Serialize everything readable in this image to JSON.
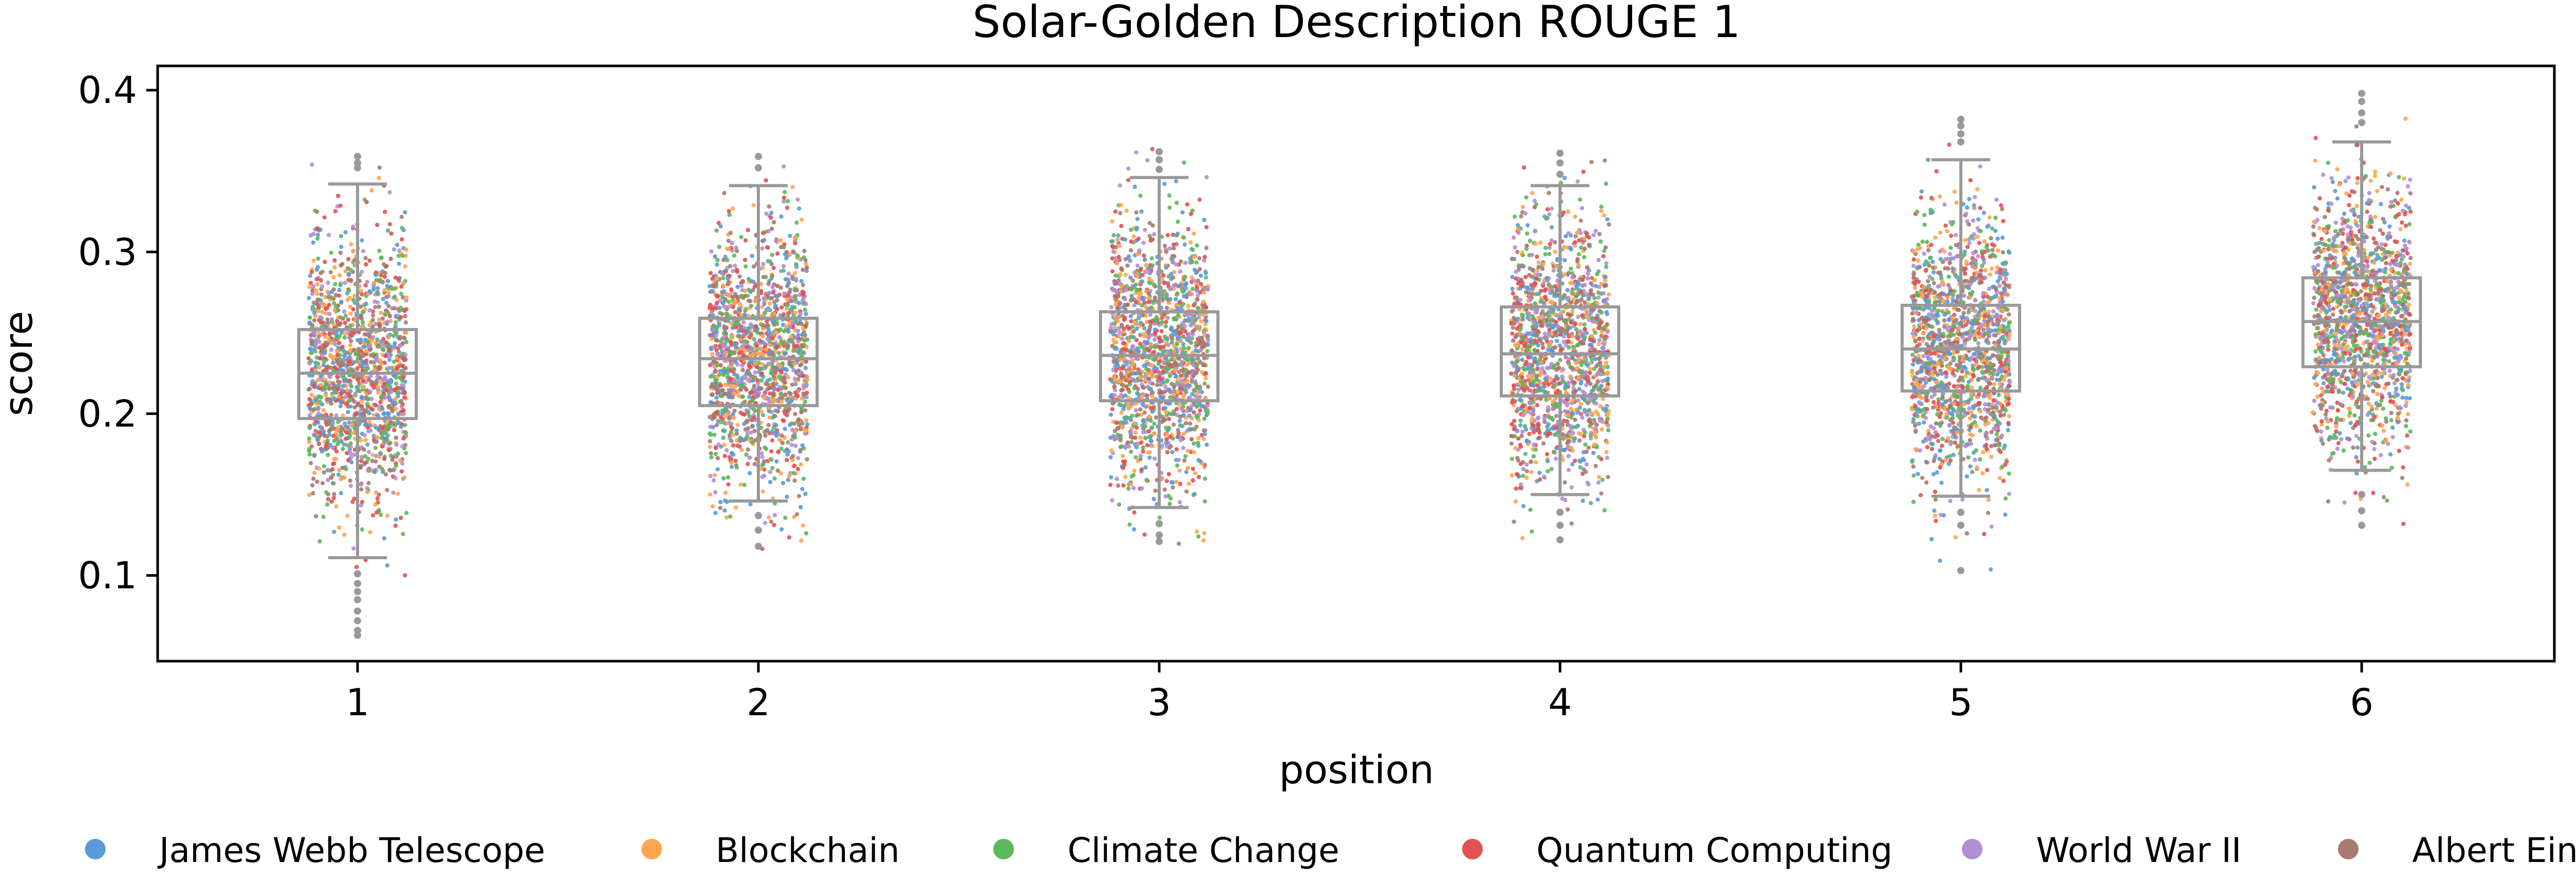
{
  "chart_data": {
    "type": "box-strip",
    "title": "Solar-Golden Description ROUGE 1",
    "xlabel": "position",
    "ylabel": "score",
    "categories": [
      "1",
      "2",
      "3",
      "4",
      "5",
      "6"
    ],
    "ylim": [
      0.047,
      0.415
    ],
    "yticks": [
      0.1,
      0.2,
      0.3,
      0.4
    ],
    "ytick_labels": [
      "0.1",
      "0.2",
      "0.3",
      "0.4"
    ],
    "grid": false,
    "legend_position": "bottom",
    "box_color": "#999999",
    "boxes": [
      {
        "category": "1",
        "whisker_low": 0.111,
        "q1": 0.197,
        "median": 0.225,
        "q3": 0.252,
        "whisker_high": 0.342,
        "outliers": [
          0.355,
          0.359,
          0.352,
          0.101,
          0.095,
          0.09,
          0.085,
          0.078,
          0.072,
          0.066,
          0.063
        ]
      },
      {
        "category": "2",
        "whisker_low": 0.146,
        "q1": 0.205,
        "median": 0.234,
        "q3": 0.259,
        "whisker_high": 0.341,
        "outliers": [
          0.359,
          0.352,
          0.137,
          0.128,
          0.118
        ]
      },
      {
        "category": "3",
        "whisker_low": 0.142,
        "q1": 0.208,
        "median": 0.236,
        "q3": 0.263,
        "whisker_high": 0.346,
        "outliers": [
          0.362,
          0.357,
          0.351,
          0.132,
          0.125,
          0.121
        ]
      },
      {
        "category": "4",
        "whisker_low": 0.15,
        "q1": 0.211,
        "median": 0.237,
        "q3": 0.266,
        "whisker_high": 0.341,
        "outliers": [
          0.361,
          0.355,
          0.348,
          0.139,
          0.131,
          0.122
        ]
      },
      {
        "category": "5",
        "whisker_low": 0.149,
        "q1": 0.214,
        "median": 0.24,
        "q3": 0.267,
        "whisker_high": 0.357,
        "outliers": [
          0.382,
          0.378,
          0.373,
          0.368,
          0.139,
          0.131,
          0.103
        ]
      },
      {
        "category": "6",
        "whisker_low": 0.165,
        "q1": 0.229,
        "median": 0.257,
        "q3": 0.284,
        "whisker_high": 0.368,
        "outliers": [
          0.398,
          0.393,
          0.386,
          0.38,
          0.15,
          0.14,
          0.131
        ]
      }
    ],
    "strip_value_range": [
      [
        0.062,
        0.36
      ],
      [
        0.116,
        0.361
      ],
      [
        0.119,
        0.364
      ],
      [
        0.12,
        0.361
      ],
      [
        0.101,
        0.381
      ],
      [
        0.122,
        0.398
      ]
    ],
    "series": [
      {
        "name": "James Webb Telescope",
        "color": "#5b9bd5"
      },
      {
        "name": "Blockchain",
        "color": "#ffa54f"
      },
      {
        "name": "Climate Change",
        "color": "#5cb85c"
      },
      {
        "name": "Quantum Computing",
        "color": "#e05252"
      },
      {
        "name": "World War II",
        "color": "#b08fd6"
      },
      {
        "name": "Albert Einstein",
        "color": "#a97b70"
      }
    ]
  }
}
